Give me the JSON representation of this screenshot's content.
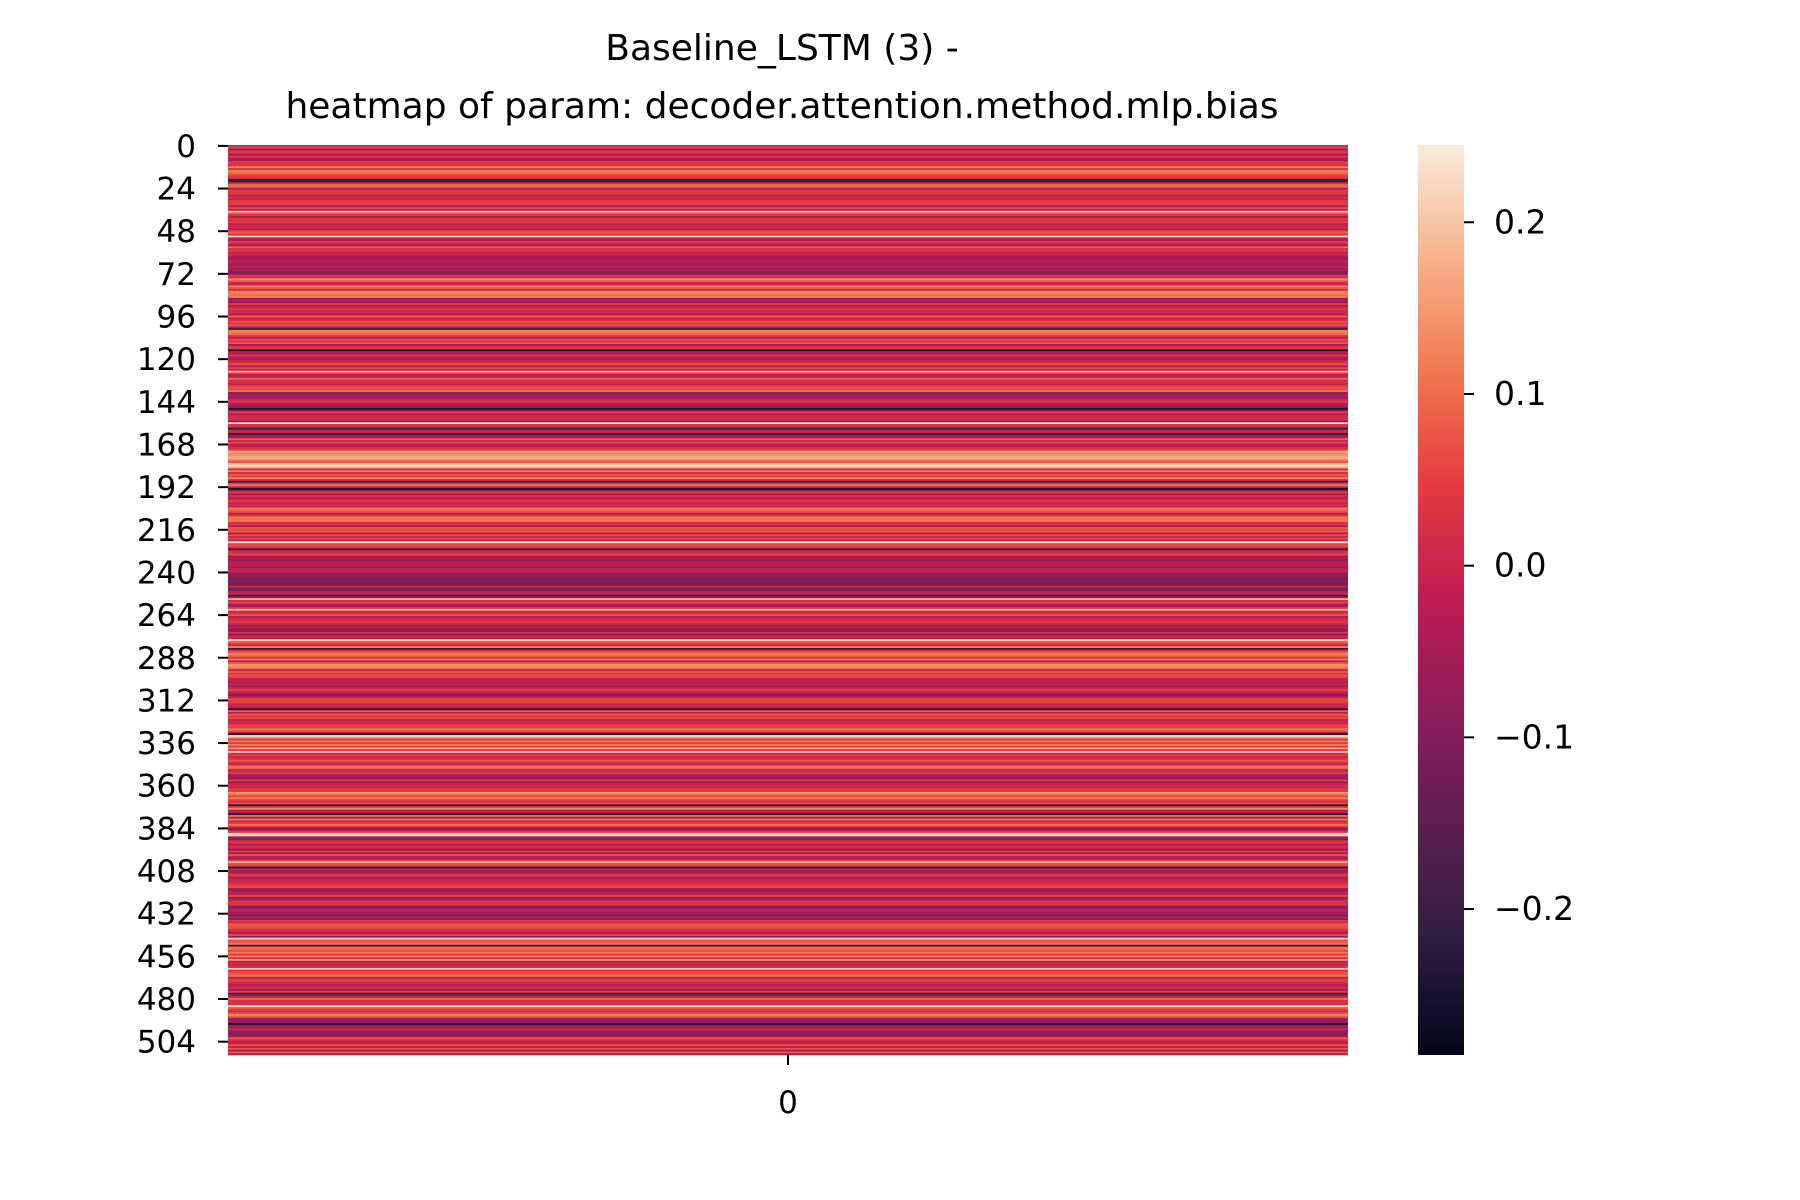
{
  "chart_data": {
    "type": "heatmap",
    "title_line1": "Baseline_LSTM (3) -",
    "title_line2": "heatmap of param: decoder.attention.method.mlp.bias",
    "rows": 512,
    "cols": 1,
    "x_tick_labels": [
      "0"
    ],
    "y_tick_labels": [
      "0",
      "24",
      "48",
      "72",
      "96",
      "120",
      "144",
      "168",
      "192",
      "216",
      "240",
      "264",
      "288",
      "312",
      "336",
      "360",
      "384",
      "408",
      "432",
      "456",
      "480",
      "504"
    ],
    "colorbar": {
      "vmin": -0.285,
      "vmax": 0.245,
      "ticks": [
        0.2,
        0.1,
        0.0,
        -0.1,
        -0.2
      ],
      "tick_labels": [
        "0.2",
        "0.1",
        "0.0",
        "−0.1",
        "−0.2"
      ],
      "colormap": "rocket"
    },
    "band_means": [
      -0.02,
      0.06,
      0.04,
      0.02,
      0.03,
      0.01,
      -0.03,
      0.07,
      -0.01,
      0.04,
      0.0,
      0.03,
      0.05,
      -0.04,
      -0.02,
      0.01,
      0.12,
      0.06,
      -0.01,
      0.05,
      0.02,
      0.01,
      -0.03,
      -0.05,
      0.0,
      -0.04,
      0.08,
      0.06,
      -0.02,
      0.02,
      0.05,
      0.1,
      0.03,
      0.0,
      0.09,
      0.04,
      -0.03,
      0.01,
      0.02,
      -0.01,
      -0.04,
      0.01,
      0.07,
      0.03,
      -0.02,
      0.06,
      -0.03,
      0.01
    ]
  }
}
